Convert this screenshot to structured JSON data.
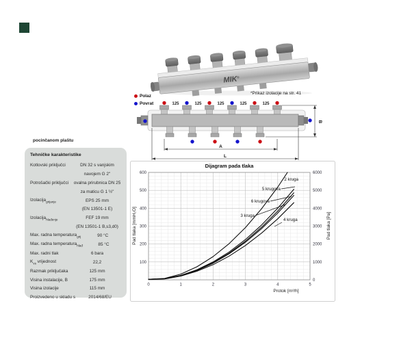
{
  "corner_marker": {
    "color": "#1e4634"
  },
  "top_view": {
    "brand": "MIK",
    "brand_mark": "®",
    "note": "*Prikaz izolacije na str. 41"
  },
  "legend": {
    "items": [
      {
        "label": "Polaz",
        "color": "#cc1016"
      },
      {
        "label": "Povrat",
        "color": "#1515cc"
      }
    ]
  },
  "drawing": {
    "spacing_value": "125",
    "top_dots": [
      "red",
      "blue",
      "red",
      "blue",
      "red",
      "red"
    ],
    "bottom_dots": [
      "blue",
      "red",
      "blue",
      "red"
    ],
    "side_dots": [
      "blue",
      "blue"
    ],
    "dim_labels": {
      "a": "A",
      "l": "L",
      "b": "B"
    }
  },
  "intro_text": "pocinčanom plaštu",
  "table": {
    "title": "Tehničke karakteristike",
    "rows": [
      {
        "label": "Kotlovski priključci",
        "value": "DN 32 s vanjskim"
      },
      {
        "label": "",
        "value": "navojem G 2\""
      },
      {
        "label": "Potrošački priključci",
        "value": "ovalna prirubnica DN 25"
      },
      {
        "label": "",
        "value": "za maticu G 1 ½\""
      },
      {
        "label": "Izolacija",
        "sub": "grijanje",
        "value": "EPS 25 mm"
      },
      {
        "label": "",
        "value": "(EN 13501-1 E)"
      },
      {
        "label": "Izolacija",
        "sub": "hlađenje",
        "value": "FEF 19 mm"
      },
      {
        "label": "",
        "value": "(EN 13501-1 B,s3,d0)"
      },
      {
        "label": "Max. radna temperatura",
        "sub": "grij",
        "value": "90 °C"
      },
      {
        "label": "Max. radna temperatura",
        "sub": "hlađ",
        "value": "85 °C"
      },
      {
        "label": "Max. radni tlak",
        "value": "6 bara"
      },
      {
        "label": "K",
        "sub": "vs",
        "label2": " vrijednost",
        "value": "22,2"
      },
      {
        "label": "Razmak priključaka",
        "value": "125 mm"
      },
      {
        "label": "Visina instalacije, B",
        "value": "175 mm"
      },
      {
        "label": "Visina izolacije",
        "value": "115 mm"
      },
      {
        "label": "Proizvedeno u skladu s",
        "value": "2014/68/EU"
      }
    ]
  },
  "chart_data": {
    "type": "line",
    "title": "Dijagram pada tlaka",
    "xlabel": "Protok [m³/h]",
    "ylabel_left": "Pad tlaka [mmH₂O]",
    "ylabel_right": "Pad tlaka [Pa]",
    "xlim": [
      0,
      5
    ],
    "ylim_left": [
      0,
      600
    ],
    "ylim_right": [
      0,
      6000
    ],
    "x_ticks": [
      0,
      1,
      2,
      3,
      4,
      5
    ],
    "y_ticks_left": [
      100,
      200,
      300,
      400,
      500,
      600
    ],
    "y_ticks_right": [
      0,
      1000,
      2000,
      3000,
      4000,
      5000,
      6000
    ],
    "grid": true,
    "series": [
      {
        "name": "2 kruga",
        "x": [
          0,
          0.5,
          1,
          1.5,
          2,
          2.5,
          3,
          3.5,
          4,
          4.3
        ],
        "y": [
          3,
          8,
          32,
          73,
          130,
          203,
          292,
          397,
          518,
          600
        ]
      },
      {
        "name": "5 krugova",
        "x": [
          0,
          0.5,
          1,
          1.5,
          2,
          2.5,
          3,
          3.5,
          4,
          4.5
        ],
        "y": [
          3,
          6,
          25,
          56,
          100,
          156,
          225,
          306,
          400,
          506
        ]
      },
      {
        "name": "6 krugova",
        "x": [
          0,
          0.5,
          1,
          1.5,
          2,
          2.5,
          3,
          3.5,
          4,
          4.5
        ],
        "y": [
          3,
          6,
          24,
          54,
          96,
          150,
          216,
          294,
          384,
          486
        ]
      },
      {
        "name": "3 kruga",
        "x": [
          0,
          0.5,
          1,
          1.5,
          2,
          2.5,
          3,
          3.5,
          4,
          4.5
        ],
        "y": [
          3,
          6,
          23,
          52,
          93,
          146,
          210,
          286,
          373,
          472
        ]
      },
      {
        "name": "4 kruga",
        "x": [
          0,
          0.5,
          1,
          1.5,
          2,
          2.5,
          3,
          3.5,
          4,
          4.5
        ],
        "y": [
          2,
          5,
          21,
          48,
          85,
          133,
          192,
          261,
          341,
          431
        ]
      }
    ]
  }
}
